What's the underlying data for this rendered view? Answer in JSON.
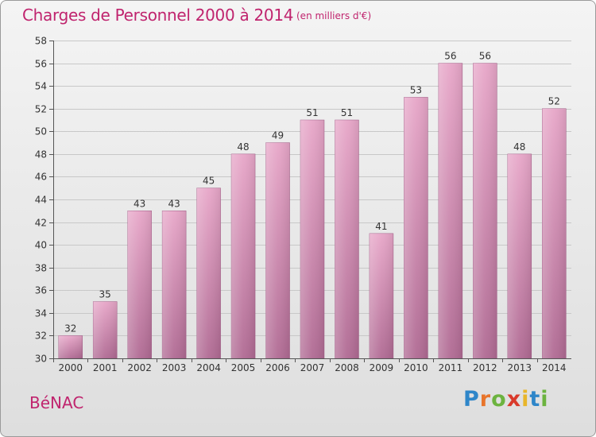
{
  "header": {
    "title": "Charges de Personnel 2000 à 2014",
    "subtitle": "(en milliers d'€)"
  },
  "footer": {
    "commune": "BéNAC",
    "logo_letters": [
      "P",
      "r",
      "o",
      "x",
      "i",
      "t",
      "i"
    ],
    "logo_colors": [
      "#2e86c9",
      "#e8742a",
      "#6cb33f",
      "#d93a2b",
      "#e8b62a",
      "#2e86c9",
      "#6cb33f"
    ]
  },
  "colors": {
    "title": "#c0246e",
    "bar_light": "#f2b8d6",
    "bar_dark": "#b06a93",
    "grid": "#c8c8c8",
    "axis": "#555555"
  },
  "chart_data": {
    "type": "bar",
    "categories": [
      "2000",
      "2001",
      "2002",
      "2003",
      "2004",
      "2005",
      "2006",
      "2007",
      "2008",
      "2009",
      "2010",
      "2011",
      "2012",
      "2013",
      "2014"
    ],
    "values": [
      32,
      35,
      43,
      43,
      45,
      48,
      49,
      51,
      51,
      41,
      53,
      56,
      56,
      48,
      52
    ],
    "ylim": [
      30,
      58
    ],
    "yticks": [
      30,
      32,
      34,
      36,
      38,
      40,
      42,
      44,
      46,
      48,
      50,
      52,
      54,
      56,
      58
    ],
    "grid": true,
    "xlabel": "",
    "ylabel": ""
  }
}
